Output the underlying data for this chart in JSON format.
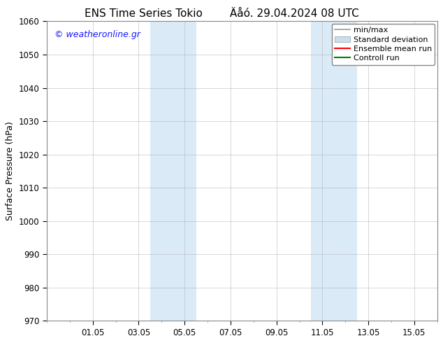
{
  "title_left": "ENS Time Series Tokio",
  "title_right": "Äåó. 29.04.2024 08 UTC",
  "ylabel": "Surface Pressure (hPa)",
  "ylim": [
    970,
    1060
  ],
  "yticks": [
    970,
    980,
    990,
    1000,
    1010,
    1020,
    1030,
    1040,
    1050,
    1060
  ],
  "total_days": 17,
  "xtick_positions": [
    2,
    4,
    6,
    8,
    10,
    12,
    14,
    16
  ],
  "xtick_labels": [
    "01.05",
    "03.05",
    "05.05",
    "07.05",
    "09.05",
    "11.05",
    "13.05",
    "15.05"
  ],
  "shaded_bands": [
    {
      "x_start": 4.5,
      "x_end": 6.5
    },
    {
      "x_start": 11.5,
      "x_end": 13.5
    }
  ],
  "shaded_color": "#daeaf7",
  "background_color": "#ffffff",
  "watermark_text": "© weatheronline.gr",
  "watermark_color": "#1a1aff",
  "legend_entries": [
    {
      "label": "min/max",
      "color": "#999999",
      "lw": 1.2,
      "type": "line"
    },
    {
      "label": "Standard deviation",
      "color": "#c8dff0",
      "lw": 6,
      "type": "patch"
    },
    {
      "label": "Ensemble mean run",
      "color": "#ff0000",
      "lw": 1.5,
      "type": "line"
    },
    {
      "label": "Controll run",
      "color": "#008000",
      "lw": 1.5,
      "type": "line"
    }
  ],
  "grid_color": "#b0b0b0",
  "title_fontsize": 11,
  "axis_label_fontsize": 9,
  "tick_fontsize": 8.5,
  "watermark_fontsize": 9,
  "legend_fontsize": 8
}
